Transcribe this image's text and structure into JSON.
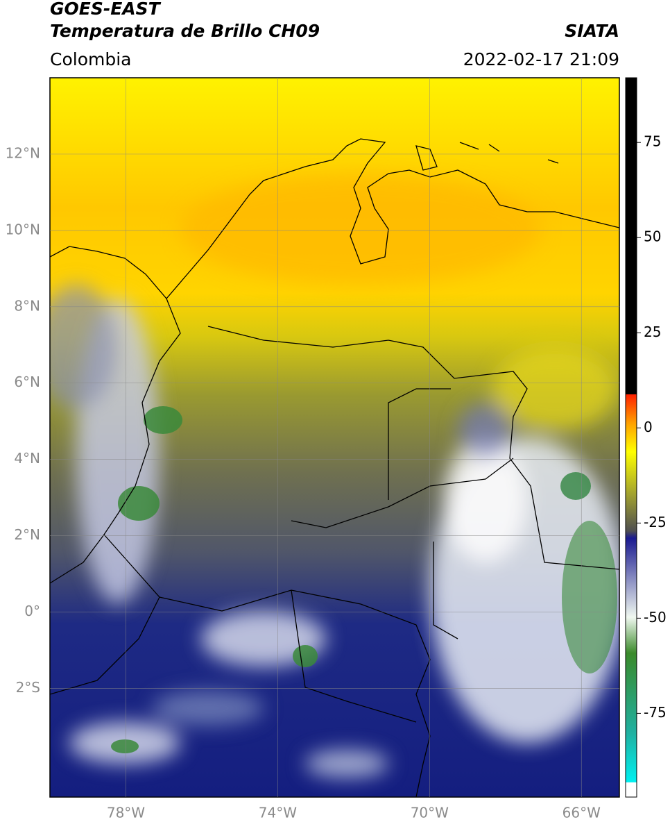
{
  "header": {
    "title_line1": "GOES-EAST",
    "title_line2": "Temperatura de Brillo CH09",
    "source": "SIATA",
    "region": "Colombia",
    "datetime": "2022-02-17 21:09"
  },
  "map": {
    "lonlim": [
      -80,
      -65
    ],
    "latlim": [
      -4.85,
      14
    ],
    "lon_ticks": [
      {
        "value": -78,
        "label": "78°W"
      },
      {
        "value": -74,
        "label": "74°W"
      },
      {
        "value": -70,
        "label": "70°W"
      },
      {
        "value": -66,
        "label": "66°W"
      }
    ],
    "lat_ticks": [
      {
        "value": 12,
        "label": "12°N"
      },
      {
        "value": 10,
        "label": "10°N"
      },
      {
        "value": 8,
        "label": "8°N"
      },
      {
        "value": 6,
        "label": "6°N"
      },
      {
        "value": 4,
        "label": "4°N"
      },
      {
        "value": 2,
        "label": "2°N"
      },
      {
        "value": 0,
        "label": "0°"
      },
      {
        "value": -2,
        "label": "2°S"
      }
    ]
  },
  "colorbar": {
    "lim": [
      -97,
      92
    ],
    "ticks": [
      75,
      50,
      25,
      0,
      -25,
      -50,
      -75
    ]
  }
}
